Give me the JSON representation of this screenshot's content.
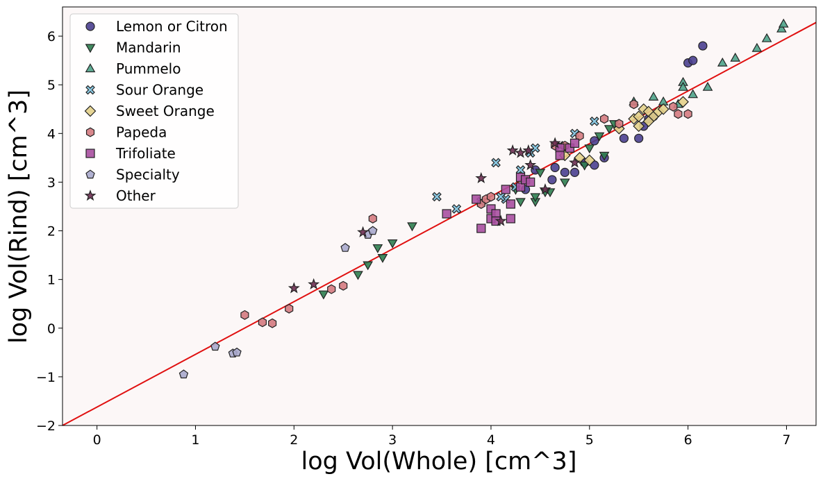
{
  "chart_data": {
    "type": "scatter",
    "xlabel": "log Vol(Whole) [cm^3]",
    "ylabel": "log Vol(Rind) [cm^3]",
    "xlim": [
      -0.35,
      7.3
    ],
    "ylim": [
      -2.0,
      6.6
    ],
    "xticks": [
      "0",
      "1",
      "2",
      "3",
      "4",
      "5",
      "6",
      "7"
    ],
    "yticks": [
      "−2",
      "−1",
      "0",
      "1",
      "2",
      "3",
      "4",
      "5",
      "6"
    ],
    "grid": false,
    "legend_position": "top-left",
    "background": "#fcf7f7",
    "fit_line": {
      "color": "#e01010",
      "points": [
        [
          -0.35,
          -2.0
        ],
        [
          7.3,
          6.28
        ]
      ]
    },
    "series": [
      {
        "name": "Lemon or Citron",
        "marker": "circle",
        "color": "#4a3f8f",
        "points": [
          [
            4.35,
            2.85
          ],
          [
            4.45,
            3.25
          ],
          [
            4.65,
            3.3
          ],
          [
            4.75,
            3.2
          ],
          [
            4.85,
            3.2
          ],
          [
            4.95,
            3.4
          ],
          [
            5.05,
            3.35
          ],
          [
            5.05,
            3.85
          ],
          [
            5.15,
            3.5
          ],
          [
            5.35,
            3.9
          ],
          [
            5.5,
            3.9
          ],
          [
            5.55,
            4.15
          ],
          [
            5.65,
            4.35
          ],
          [
            6.0,
            5.45
          ],
          [
            6.05,
            5.5
          ],
          [
            6.15,
            5.8
          ],
          [
            4.62,
            3.05
          ],
          [
            5.6,
            4.3
          ]
        ]
      },
      {
        "name": "Mandarin",
        "marker": "triangle-down",
        "color": "#2e7d4f",
        "points": [
          [
            2.3,
            0.7
          ],
          [
            2.65,
            1.1
          ],
          [
            2.75,
            1.3
          ],
          [
            2.85,
            1.65
          ],
          [
            2.9,
            1.45
          ],
          [
            3.0,
            1.75
          ],
          [
            3.2,
            2.1
          ],
          [
            4.3,
            2.6
          ],
          [
            4.45,
            2.6
          ],
          [
            4.45,
            2.7
          ],
          [
            4.6,
            2.8
          ],
          [
            4.75,
            3.0
          ],
          [
            4.95,
            3.35
          ],
          [
            5.0,
            3.7
          ],
          [
            5.1,
            3.95
          ],
          [
            5.2,
            4.1
          ],
          [
            4.25,
            2.85
          ],
          [
            4.5,
            3.2
          ],
          [
            4.55,
            2.8
          ],
          [
            5.25,
            4.2
          ],
          [
            5.15,
            3.55
          ]
        ]
      },
      {
        "name": "Pummelo",
        "marker": "triangle-up",
        "color": "#4fa38a",
        "points": [
          [
            5.45,
            4.65
          ],
          [
            5.65,
            4.75
          ],
          [
            5.75,
            4.65
          ],
          [
            5.95,
            5.05
          ],
          [
            5.95,
            4.95
          ],
          [
            6.05,
            4.8
          ],
          [
            6.2,
            4.95
          ],
          [
            6.35,
            5.45
          ],
          [
            6.48,
            5.55
          ],
          [
            6.7,
            5.75
          ],
          [
            6.8,
            5.95
          ],
          [
            6.95,
            6.15
          ],
          [
            6.97,
            6.25
          ],
          [
            5.9,
            4.6
          ]
        ]
      },
      {
        "name": "Sour Orange",
        "marker": "x",
        "color": "#7ec3e0",
        "points": [
          [
            3.45,
            2.7
          ],
          [
            3.65,
            2.45
          ],
          [
            3.9,
            2.6
          ],
          [
            4.05,
            3.4
          ],
          [
            4.15,
            2.65
          ],
          [
            4.3,
            3.25
          ],
          [
            4.4,
            3.6
          ],
          [
            4.45,
            3.7
          ],
          [
            4.7,
            3.75
          ],
          [
            4.85,
            4.0
          ],
          [
            5.05,
            4.25
          ],
          [
            4.25,
            2.9
          ],
          [
            4.1,
            2.7
          ]
        ]
      },
      {
        "name": "Sweet Orange",
        "marker": "diamond",
        "color": "#e3d08a",
        "points": [
          [
            4.75,
            3.55
          ],
          [
            4.9,
            3.5
          ],
          [
            5.0,
            3.45
          ],
          [
            5.3,
            4.1
          ],
          [
            5.45,
            4.3
          ],
          [
            5.5,
            4.15
          ],
          [
            5.55,
            4.5
          ],
          [
            5.6,
            4.45
          ],
          [
            5.65,
            4.35
          ],
          [
            5.7,
            4.45
          ],
          [
            5.75,
            4.5
          ],
          [
            5.95,
            4.65
          ],
          [
            5.5,
            4.35
          ],
          [
            5.6,
            4.25
          ]
        ]
      },
      {
        "name": "Papeda",
        "marker": "hexagon",
        "color": "#d47a7f",
        "points": [
          [
            1.5,
            0.27
          ],
          [
            1.68,
            0.12
          ],
          [
            1.78,
            0.1
          ],
          [
            1.95,
            0.4
          ],
          [
            2.38,
            0.8
          ],
          [
            2.5,
            0.87
          ],
          [
            2.8,
            2.25
          ],
          [
            3.9,
            2.55
          ],
          [
            3.95,
            2.65
          ],
          [
            4.0,
            2.7
          ],
          [
            4.65,
            3.75
          ],
          [
            4.75,
            3.75
          ],
          [
            4.9,
            3.95
          ],
          [
            5.15,
            4.3
          ],
          [
            5.3,
            4.2
          ],
          [
            5.45,
            4.6
          ],
          [
            5.85,
            4.55
          ],
          [
            5.9,
            4.4
          ],
          [
            6.0,
            4.4
          ]
        ]
      },
      {
        "name": "Trifoliate",
        "marker": "square",
        "color": "#a84fa0",
        "points": [
          [
            3.55,
            2.35
          ],
          [
            3.85,
            2.65
          ],
          [
            3.9,
            2.05
          ],
          [
            4.0,
            2.25
          ],
          [
            4.0,
            2.45
          ],
          [
            4.05,
            2.35
          ],
          [
            4.05,
            2.2
          ],
          [
            4.15,
            2.85
          ],
          [
            4.2,
            2.55
          ],
          [
            4.2,
            2.25
          ],
          [
            4.3,
            3.1
          ],
          [
            4.3,
            2.9
          ],
          [
            4.35,
            3.05
          ],
          [
            4.4,
            3.0
          ],
          [
            4.7,
            3.7
          ],
          [
            4.8,
            3.7
          ],
          [
            4.85,
            3.8
          ],
          [
            4.7,
            3.55
          ]
        ]
      },
      {
        "name": "Specialty",
        "marker": "pentagon",
        "color": "#a8a8cc",
        "points": [
          [
            0.88,
            -0.95
          ],
          [
            1.2,
            -0.38
          ],
          [
            1.38,
            -0.52
          ],
          [
            1.42,
            -0.5
          ],
          [
            2.52,
            1.65
          ],
          [
            2.75,
            1.92
          ],
          [
            2.8,
            2.0
          ]
        ]
      },
      {
        "name": "Other",
        "marker": "star",
        "color": "#6e2f52",
        "points": [
          [
            2.0,
            0.82
          ],
          [
            2.2,
            0.9
          ],
          [
            2.7,
            1.97
          ],
          [
            3.9,
            3.08
          ],
          [
            4.1,
            2.2
          ],
          [
            4.22,
            3.65
          ],
          [
            4.3,
            3.6
          ],
          [
            4.38,
            3.65
          ],
          [
            4.4,
            3.35
          ],
          [
            4.55,
            2.85
          ],
          [
            4.65,
            3.8
          ],
          [
            4.85,
            3.4
          ]
        ]
      }
    ]
  }
}
